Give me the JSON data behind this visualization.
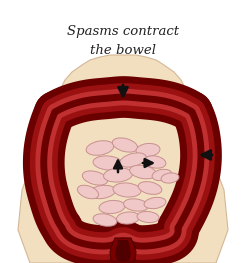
{
  "title_line1": "Spasms contract",
  "title_line2": "the bowel",
  "body_skin": "#f2dfc0",
  "body_edge": "#d4b896",
  "colon_dark": "#6b0000",
  "colon_mid": "#9b1010",
  "colon_light": "#c03030",
  "intestine_fill": "#f0c8c8",
  "intestine_edge": "#c89090",
  "rectum_dark": "#7a0000",
  "arrow_color": "#111111",
  "text_color": "#222222",
  "bg_color": "#ffffff"
}
